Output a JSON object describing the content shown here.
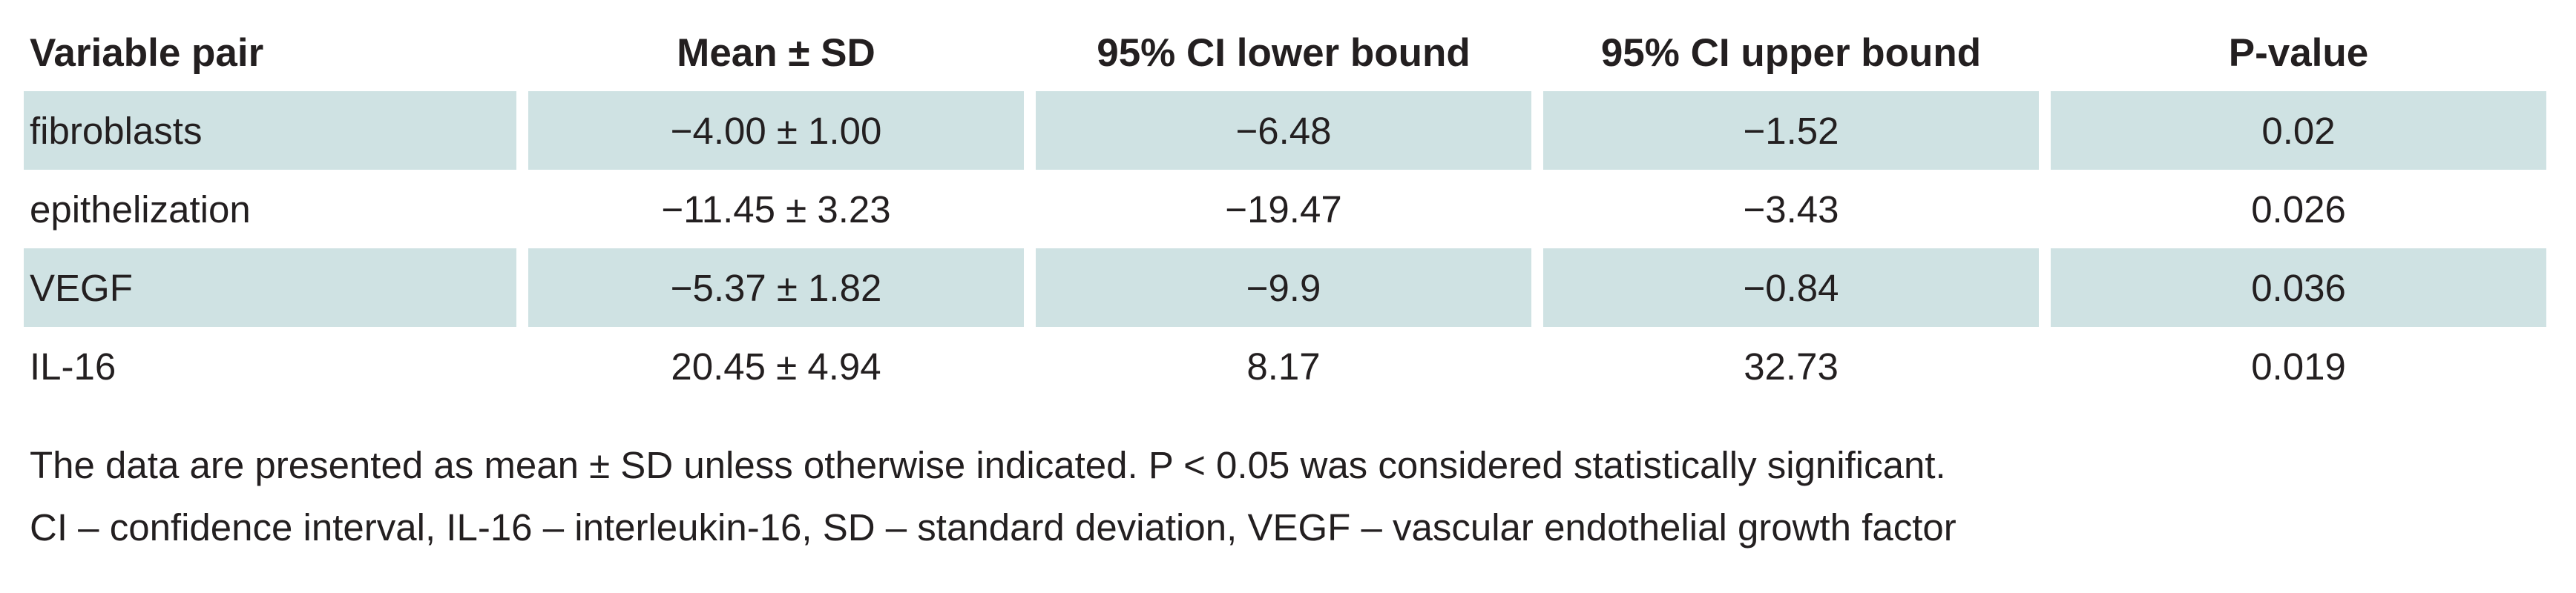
{
  "table": {
    "headers": [
      "Variable pair",
      "Mean ± SD",
      "95% CI lower bound",
      "95% CI upper bound",
      "P-value"
    ],
    "rows": [
      {
        "shaded": true,
        "cells": [
          "fibroblasts",
          "−4.00 ± 1.00",
          "−6.48",
          "−1.52",
          "0.02"
        ]
      },
      {
        "shaded": false,
        "cells": [
          "epithelization",
          "−11.45 ± 3.23",
          "−19.47",
          "−3.43",
          "0.026"
        ]
      },
      {
        "shaded": true,
        "cells": [
          "VEGF",
          "−5.37 ± 1.82",
          "−9.9",
          "−0.84",
          "0.036"
        ]
      },
      {
        "shaded": false,
        "cells": [
          "IL-16",
          "20.45 ± 4.94",
          "8.17",
          "32.73",
          "0.019"
        ]
      }
    ]
  },
  "notes": {
    "line1": "The data are presented as mean ± SD unless otherwise indicated. P < 0.05 was considered statistically significant.",
    "line2": "CI – confidence interval, IL-16 – interleukin-16, SD – standard deviation, VEGF – vascular endothelial growth factor"
  },
  "colors": {
    "row_shade": "#cfe2e3",
    "text": "#231f20"
  }
}
